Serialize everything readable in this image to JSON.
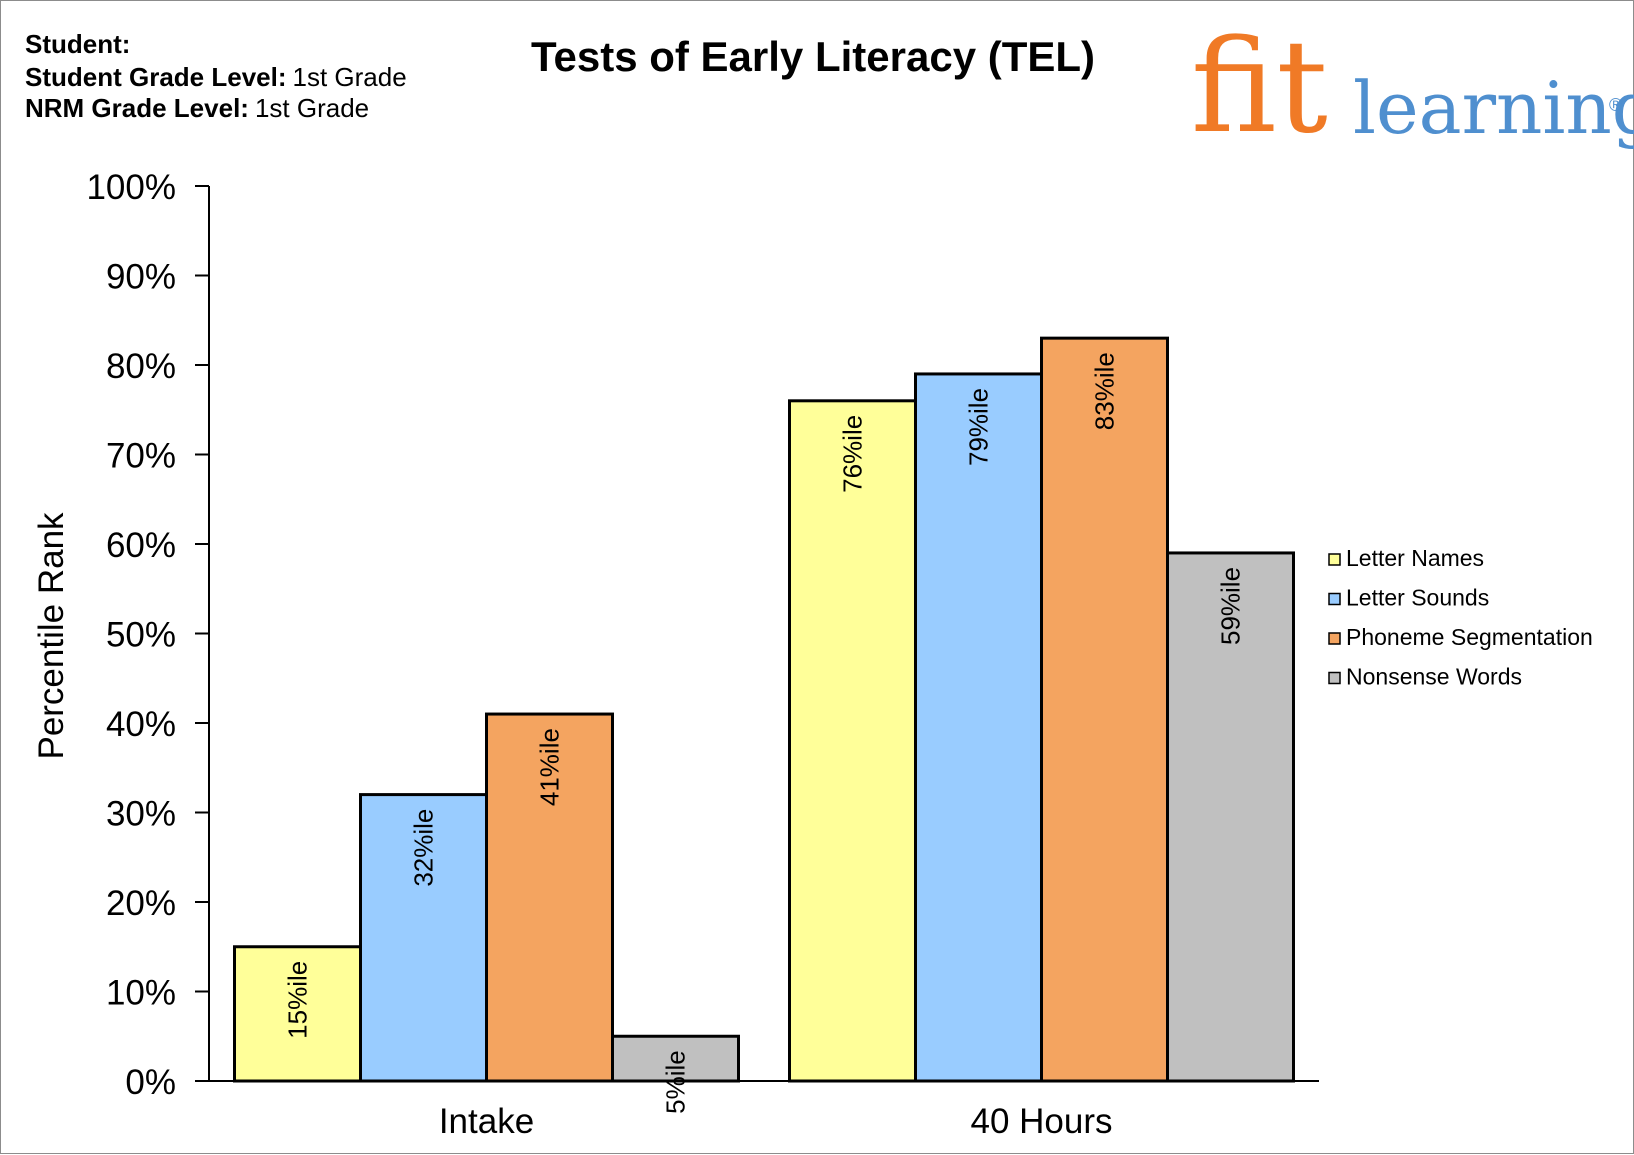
{
  "header": {
    "student_label": "Student:",
    "student_value": "",
    "grade_label": "Student Grade Level:",
    "grade_value": "1st Grade",
    "nrm_label": "NRM Grade Level:",
    "nrm_value": "1st Grade"
  },
  "logo": {
    "fit": "fit",
    "learning": "learning",
    "reg": "®",
    "fit_color": "#f07a26",
    "learning_color": "#4f8fcf"
  },
  "chart_data": {
    "type": "bar",
    "title": "Tests of Early Literacy (TEL)",
    "xlabel": "",
    "ylabel": "Percentile Rank",
    "ylim": [
      0,
      100
    ],
    "yticks": [
      0,
      10,
      20,
      30,
      40,
      50,
      60,
      70,
      80,
      90,
      100
    ],
    "ytick_labels": [
      "0%",
      "10%",
      "20%",
      "30%",
      "40%",
      "50%",
      "60%",
      "70%",
      "80%",
      "90%",
      "100%"
    ],
    "categories": [
      "Intake",
      "40 Hours"
    ],
    "grid": false,
    "legend_position": "right",
    "series": [
      {
        "name": "Letter Names",
        "color": "#ffff99",
        "values": [
          15,
          76
        ],
        "labels": [
          "15%ile",
          "76%ile"
        ]
      },
      {
        "name": "Letter Sounds",
        "color": "#99ccff",
        "values": [
          32,
          79
        ],
        "labels": [
          "32%ile",
          "79%ile"
        ]
      },
      {
        "name": "Phoneme Segmentation",
        "color": "#f4a460",
        "values": [
          41,
          83
        ],
        "labels": [
          "41%ile",
          "83%ile"
        ]
      },
      {
        "name": "Nonsense Words",
        "color": "#c0c0c0",
        "values": [
          5,
          59
        ],
        "labels": [
          "5%ile",
          "59%ile"
        ]
      }
    ]
  }
}
